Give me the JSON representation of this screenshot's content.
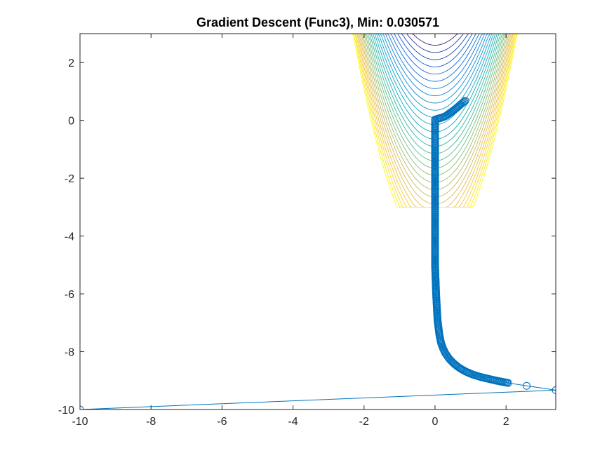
{
  "chart_data": {
    "type": "line",
    "title": "Gradient Descent (Func3), Min: 0.030571",
    "xlabel": "",
    "ylabel": "",
    "xlim": [
      -10,
      3.4
    ],
    "ylim": [
      -10,
      3
    ],
    "xticks": [
      -10,
      -8,
      -6,
      -4,
      -2,
      0,
      2
    ],
    "yticks": [
      -10,
      -8,
      -6,
      -4,
      -2,
      0,
      2
    ],
    "grid": false,
    "contour": {
      "x_range": [
        -3,
        3
      ],
      "y_range": [
        -3,
        3
      ],
      "colormap": "parula"
    },
    "series": [
      {
        "marker": "circle",
        "color": "#0072BD",
        "x": [
          -10,
          3.4,
          2.58,
          2.06,
          1.72,
          1.47,
          1.27,
          1.11,
          0.98,
          0.87,
          0.78,
          0.7,
          0.62,
          0.55,
          0.48,
          0.41,
          0.35,
          0.29,
          0.23,
          0.17,
          0.12,
          0.07,
          0.03,
          0.0,
          0.0,
          0.0,
          0.0,
          0.0,
          0.0,
          0.0,
          0.0,
          0.0,
          0.05,
          0.15,
          0.3,
          0.45,
          0.6,
          0.72,
          0.85
        ],
        "y": [
          -10,
          -9.33,
          -9.18,
          -9.08,
          -9.0,
          -8.93,
          -8.87,
          -8.81,
          -8.75,
          -8.69,
          -8.63,
          -8.57,
          -8.5,
          -8.43,
          -8.35,
          -8.26,
          -8.16,
          -8.05,
          -7.9,
          -7.7,
          -7.4,
          -6.9,
          -6.0,
          -5.0,
          -4.0,
          -3.0,
          -2.0,
          -1.0,
          -0.5,
          -0.2,
          0.0,
          0.03,
          0.05,
          0.08,
          0.15,
          0.28,
          0.42,
          0.55,
          0.68
        ]
      }
    ]
  }
}
